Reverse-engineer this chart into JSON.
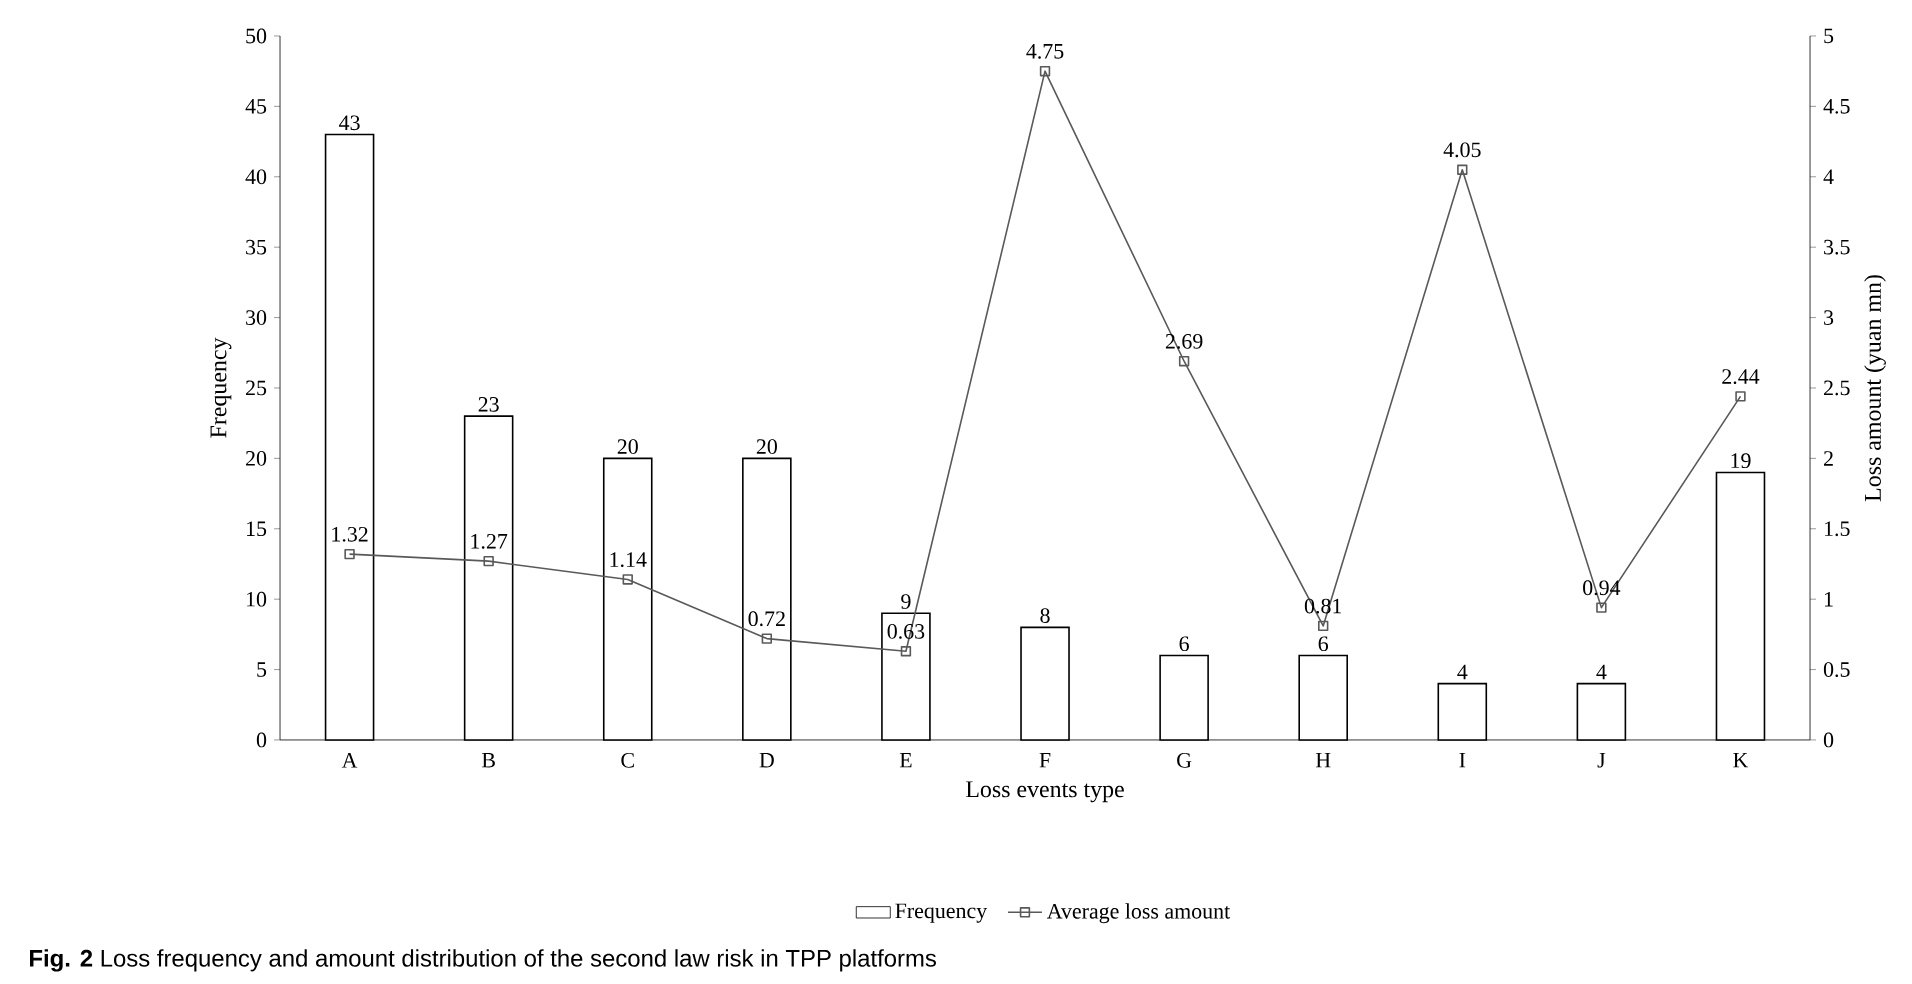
{
  "chart_data": {
    "type": "bar",
    "xlabel": "Loss events type",
    "ylabel": "Frequency",
    "y2label": "Loss amount (yuan mn)",
    "categories": [
      "A",
      "B",
      "C",
      "D",
      "E",
      "F",
      "G",
      "H",
      "I",
      "J",
      "K"
    ],
    "series": [
      {
        "name": "Frequency",
        "color": "#ffffff",
        "values": [
          43,
          23,
          20,
          20,
          9,
          8,
          6,
          6,
          4,
          4,
          19
        ]
      },
      {
        "name": "Average loss amount",
        "type": "line",
        "axis": "y2",
        "color": "#595959",
        "marker": "square",
        "values": [
          1.32,
          1.27,
          1.14,
          0.72,
          0.63,
          4.75,
          2.69,
          0.81,
          4.05,
          0.94,
          2.44
        ]
      }
    ],
    "ylim": [
      0,
      50
    ],
    "yticks": [
      0,
      5,
      10,
      15,
      20,
      25,
      30,
      35,
      40,
      45,
      50
    ],
    "y2lim": [
      0,
      5
    ],
    "y2ticks": [
      0,
      0.5,
      1,
      1.5,
      2,
      2.5,
      3,
      3.5,
      4,
      4.5,
      5
    ],
    "data_labels": true,
    "legend": "bottom",
    "grid": false,
    "annotations": [
      "**Fig. 2** Loss frequency and amount distribution of the second law risk in TPP platforms"
    ]
  }
}
